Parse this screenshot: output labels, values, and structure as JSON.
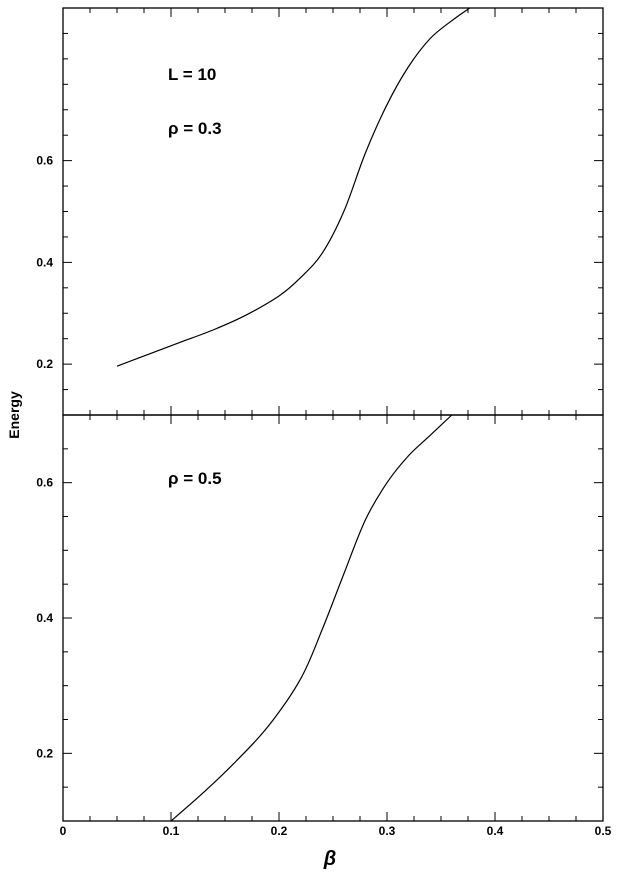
{
  "chart_data": {
    "type": "line",
    "xlabel": "β",
    "ylabel": "Energy",
    "xlim": [
      0,
      0.5
    ],
    "x_ticks": [
      "0",
      "0.1",
      "0.2",
      "0.3",
      "0.4",
      "0.5"
    ],
    "grid": false,
    "panels": [
      {
        "id": "top",
        "annotations": [
          "L = 10",
          "ρ = 0.3"
        ],
        "ylim": [
          0.1,
          0.9
        ],
        "y_ticks": [
          "0.2",
          "0.4",
          "0.6"
        ],
        "y_tick_values": [
          0.2,
          0.4,
          0.6
        ],
        "series": [
          {
            "x": [
              0.05,
              0.08,
              0.11,
              0.14,
              0.17,
              0.2,
              0.22,
              0.24,
              0.26,
              0.28,
              0.3,
              0.32,
              0.34,
              0.36,
              0.38
            ],
            "y": [
              0.196,
              0.22,
              0.244,
              0.268,
              0.297,
              0.334,
              0.37,
              0.418,
              0.5,
              0.615,
              0.71,
              0.785,
              0.84,
              0.875,
              0.905
            ]
          }
        ]
      },
      {
        "id": "bottom",
        "annotations": [
          "ρ = 0.5"
        ],
        "ylim": [
          0.1,
          0.7
        ],
        "y_ticks": [
          "0.2",
          "0.4",
          "0.6"
        ],
        "y_tick_values": [
          0.2,
          0.4,
          0.6
        ],
        "series": [
          {
            "x": [
              0.1,
              0.13,
              0.16,
              0.19,
              0.22,
              0.24,
              0.26,
              0.28,
              0.3,
              0.32,
              0.34,
              0.36
            ],
            "y": [
              0.1,
              0.142,
              0.188,
              0.24,
              0.31,
              0.383,
              0.465,
              0.545,
              0.6,
              0.64,
              0.67,
              0.7
            ]
          }
        ]
      }
    ]
  }
}
